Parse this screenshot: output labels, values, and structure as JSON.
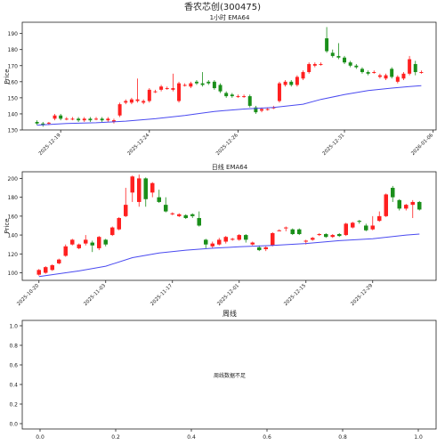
{
  "figure_title": "香农芯创(300475)",
  "colors": {
    "up": "#ff2020",
    "down": "#1a8f1a",
    "ema": "#4a4af0",
    "axis": "#222222"
  },
  "chart_data": [
    {
      "type": "candlestick",
      "title": "1小时 EMA64",
      "ylabel": "Price",
      "ylim": [
        130,
        197
      ],
      "yticks": [
        130,
        140,
        150,
        160,
        170,
        180,
        190
      ],
      "xtick_labels": [
        {
          "index": 4,
          "label": "2025-12-19"
        },
        {
          "index": 19,
          "label": "2025-12-24"
        },
        {
          "index": 34,
          "label": "2025-12-26"
        },
        {
          "index": 52,
          "label": "2025-12-31"
        },
        {
          "index": 67,
          "label": "2026-01-06"
        },
        {
          "index": 82,
          "label": "2026-01-09"
        }
      ],
      "candles": [
        [
          0,
          135,
          134,
          136,
          133
        ],
        [
          1,
          134,
          133,
          135,
          132
        ],
        [
          2,
          134,
          134.5,
          135,
          133
        ],
        [
          3,
          137,
          139,
          140,
          136
        ],
        [
          4,
          139,
          137,
          140,
          136
        ],
        [
          5,
          137,
          137,
          138,
          136
        ],
        [
          6,
          137,
          137,
          138,
          136
        ],
        [
          7,
          137,
          136,
          138,
          135
        ],
        [
          8,
          136,
          137,
          138,
          135
        ],
        [
          9,
          137,
          136,
          138,
          135
        ],
        [
          10,
          137,
          137,
          138,
          136
        ],
        [
          11,
          137,
          136,
          138,
          135
        ],
        [
          12,
          136,
          137,
          138,
          135
        ],
        [
          13,
          135,
          136,
          137,
          134
        ],
        [
          14,
          139,
          146,
          147,
          138
        ],
        [
          15,
          147,
          148,
          149,
          146
        ],
        [
          16,
          147,
          149,
          150,
          146
        ],
        [
          17,
          148,
          149,
          162,
          147
        ],
        [
          18,
          147,
          148,
          149,
          146
        ],
        [
          19,
          148,
          155,
          156,
          147
        ],
        [
          20,
          154,
          154,
          155,
          153
        ],
        [
          21,
          155,
          157,
          158,
          154
        ],
        [
          22,
          156,
          156,
          157,
          155
        ],
        [
          23,
          155,
          156,
          165,
          154
        ],
        [
          24,
          148,
          159,
          160,
          147
        ],
        [
          25,
          158,
          158,
          159,
          157
        ],
        [
          26,
          157,
          159,
          160,
          156
        ],
        [
          27,
          160,
          159,
          161,
          158
        ],
        [
          28,
          159,
          158,
          166,
          157
        ],
        [
          29,
          160,
          159,
          161,
          158
        ],
        [
          30,
          160,
          156,
          161,
          155
        ],
        [
          31,
          158,
          154,
          159,
          153
        ],
        [
          32,
          153,
          151,
          154,
          150
        ],
        [
          33,
          152,
          151,
          153,
          150
        ],
        [
          34,
          151,
          151,
          152,
          150
        ],
        [
          35,
          151,
          151,
          152,
          150
        ],
        [
          36,
          151,
          145,
          152,
          144
        ],
        [
          37,
          144,
          141,
          145,
          140
        ],
        [
          38,
          142,
          143,
          144,
          141
        ],
        [
          39,
          143,
          143,
          144,
          142
        ],
        [
          40,
          144,
          144,
          145,
          143
        ],
        [
          41,
          148,
          159,
          160,
          147
        ],
        [
          42,
          158,
          160,
          161,
          157
        ],
        [
          43,
          160,
          158,
          161,
          157
        ],
        [
          44,
          158,
          163,
          164,
          157
        ],
        [
          45,
          162,
          166,
          167,
          161
        ],
        [
          46,
          166,
          171,
          172,
          165
        ],
        [
          47,
          170,
          171,
          172,
          169
        ],
        [
          48,
          171,
          171,
          172,
          170
        ],
        [
          49,
          187,
          179,
          194,
          178
        ],
        [
          50,
          178,
          176,
          180,
          175
        ],
        [
          51,
          176,
          175,
          184,
          174
        ],
        [
          52,
          175,
          172,
          176,
          171
        ],
        [
          53,
          172,
          170,
          173,
          169
        ],
        [
          54,
          170,
          169,
          171,
          168
        ],
        [
          55,
          168,
          166,
          169,
          165
        ],
        [
          56,
          166,
          165,
          167,
          164
        ],
        [
          57,
          166,
          166,
          167,
          165
        ],
        [
          58,
          163,
          164,
          165,
          162
        ],
        [
          59,
          162,
          164,
          165,
          161
        ],
        [
          60,
          168,
          163,
          169,
          162
        ],
        [
          61,
          160,
          163,
          164,
          159
        ],
        [
          62,
          162,
          165,
          166,
          161
        ],
        [
          63,
          165,
          174,
          176,
          164
        ],
        [
          64,
          171,
          166,
          173,
          164
        ],
        [
          65,
          166,
          166,
          167,
          165
        ]
      ],
      "ema": [
        [
          0,
          133
        ],
        [
          5,
          134
        ],
        [
          10,
          134.5
        ],
        [
          15,
          135.5
        ],
        [
          20,
          137
        ],
        [
          25,
          139
        ],
        [
          30,
          141.5
        ],
        [
          35,
          143
        ],
        [
          40,
          144
        ],
        [
          45,
          146
        ],
        [
          48,
          149
        ],
        [
          52,
          152
        ],
        [
          56,
          154.5
        ],
        [
          60,
          156
        ],
        [
          63,
          157
        ],
        [
          65,
          157.5
        ]
      ]
    },
    {
      "type": "candlestick",
      "title": "日线 EMA64",
      "ylabel": "Price",
      "ylim": [
        92,
        207
      ],
      "yticks": [
        100,
        120,
        140,
        160,
        180,
        200
      ],
      "xtick_labels": [
        {
          "index": 0,
          "label": "2025-10-20"
        },
        {
          "index": 10,
          "label": "2025-11-03"
        },
        {
          "index": 20,
          "label": "2025-11-17"
        },
        {
          "index": 30,
          "label": "2025-12-01"
        },
        {
          "index": 40,
          "label": "2025-12-15"
        },
        {
          "index": 50,
          "label": "2025-12-29"
        }
      ],
      "candles": [
        [
          0,
          98,
          103,
          104,
          97
        ],
        [
          1,
          100,
          106,
          107,
          99
        ],
        [
          2,
          103,
          108,
          109,
          102
        ],
        [
          3,
          110,
          114,
          115,
          109
        ],
        [
          4,
          118,
          128,
          130,
          117
        ],
        [
          5,
          130,
          135,
          136,
          129
        ],
        [
          6,
          126,
          130,
          131,
          125
        ],
        [
          7,
          131,
          135,
          140,
          129
        ],
        [
          8,
          132,
          129,
          134,
          122
        ],
        [
          9,
          126,
          138,
          139,
          124
        ],
        [
          10,
          135,
          130,
          136,
          128
        ],
        [
          11,
          140,
          148,
          149,
          139
        ],
        [
          12,
          146,
          158,
          159,
          145
        ],
        [
          13,
          160,
          172,
          190,
          159
        ],
        [
          14,
          185,
          202,
          203,
          175
        ],
        [
          15,
          175,
          200,
          204,
          170
        ],
        [
          16,
          200,
          178,
          201,
          170
        ],
        [
          17,
          185,
          195,
          196,
          180
        ],
        [
          18,
          180,
          175,
          188,
          174
        ],
        [
          19,
          172,
          165,
          180,
          164
        ],
        [
          20,
          162,
          163,
          164,
          161
        ],
        [
          21,
          160,
          162,
          163,
          159
        ],
        [
          22,
          161,
          158,
          162,
          157
        ],
        [
          23,
          162,
          160,
          163,
          158
        ],
        [
          24,
          158,
          150,
          165,
          149
        ],
        [
          25,
          135,
          130,
          136,
          126
        ],
        [
          26,
          128,
          131,
          133,
          126
        ],
        [
          27,
          130,
          135,
          137,
          129
        ],
        [
          28,
          133,
          138,
          139,
          131
        ],
        [
          29,
          135,
          136,
          137,
          134
        ],
        [
          30,
          135,
          140,
          141,
          134
        ],
        [
          31,
          140,
          135,
          141,
          132
        ],
        [
          32,
          130,
          132,
          133,
          129
        ],
        [
          33,
          127,
          124,
          129,
          123
        ],
        [
          34,
          125,
          127,
          128,
          123
        ],
        [
          35,
          129,
          142,
          143,
          128
        ],
        [
          36,
          145,
          145,
          146,
          144
        ],
        [
          37,
          148,
          148,
          149,
          144
        ],
        [
          38,
          146,
          141,
          147,
          140
        ],
        [
          39,
          146,
          141,
          147,
          140
        ],
        [
          40,
          133,
          134,
          135,
          130
        ],
        [
          41,
          135,
          137,
          138,
          134
        ],
        [
          42,
          140,
          141,
          142,
          139
        ],
        [
          43,
          141,
          138,
          142,
          137
        ],
        [
          44,
          138,
          140,
          141,
          137
        ],
        [
          45,
          141,
          139,
          142,
          138
        ],
        [
          46,
          140,
          152,
          153,
          139
        ],
        [
          47,
          148,
          153,
          154,
          147
        ],
        [
          48,
          155,
          154,
          156,
          152
        ],
        [
          49,
          150,
          145,
          152,
          144
        ],
        [
          50,
          146,
          150,
          160,
          145
        ],
        [
          51,
          155,
          160,
          165,
          154
        ],
        [
          52,
          160,
          183,
          184,
          159
        ],
        [
          53,
          190,
          180,
          192,
          175
        ],
        [
          54,
          177,
          168,
          178,
          166
        ],
        [
          55,
          168,
          172,
          173,
          166
        ],
        [
          56,
          172,
          175,
          177,
          158
        ],
        [
          57,
          175,
          167,
          176,
          166
        ]
      ],
      "ema": [
        [
          0,
          96
        ],
        [
          6,
          102
        ],
        [
          10,
          107
        ],
        [
          14,
          116
        ],
        [
          18,
          121
        ],
        [
          22,
          124
        ],
        [
          26,
          126
        ],
        [
          30,
          127.5
        ],
        [
          35,
          129
        ],
        [
          40,
          131
        ],
        [
          45,
          134
        ],
        [
          50,
          136
        ],
        [
          55,
          140
        ],
        [
          57,
          141
        ]
      ]
    },
    {
      "type": "empty",
      "title": "周线",
      "message": "周线数据不足",
      "xlim": [
        0,
        1
      ],
      "ylim": [
        0,
        1
      ],
      "xticks": [
        "0.0",
        "0.2",
        "0.4",
        "0.6",
        "0.8",
        "1.0"
      ],
      "yticks": [
        "0.0",
        "0.2",
        "0.4",
        "0.6",
        "0.8",
        "1.0"
      ]
    }
  ]
}
